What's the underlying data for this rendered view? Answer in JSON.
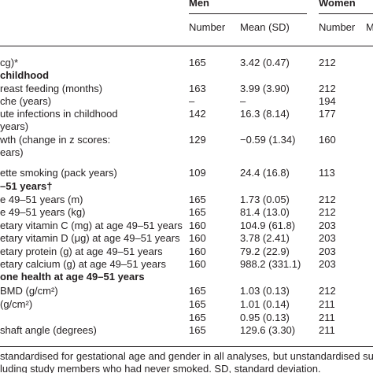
{
  "table": {
    "groups": [
      "Men",
      "Women"
    ],
    "columns": [
      "Number",
      "Mean (SD)",
      "Number",
      "M"
    ],
    "rows": [
      {
        "cells": [
          "cg)*",
          "165",
          "3.42 (0.47)",
          "212"
        ]
      },
      {
        "heading": "childhood"
      },
      {
        "cells": [
          "reast feeding (months)",
          "163",
          "3.99 (3.90)",
          "212"
        ]
      },
      {
        "cells": [
          "che (years)",
          "–",
          "–",
          "194"
        ]
      },
      {
        "cells": [
          "ute infections in childhood",
          "142",
          "16.3 (8.14)",
          "177"
        ]
      },
      {
        "text": " years)"
      },
      {
        "cells": [
          "wth (change in z scores:",
          "129",
          "−0.59 (1.34)",
          "160"
        ]
      },
      {
        "text": "ears)"
      },
      {
        "cells": [
          "ette smoking (pack years)",
          "109",
          "24.4 (16.8)",
          "113"
        ]
      },
      {
        "heading": "–51 years†"
      },
      {
        "cells": [
          "e 49–51 years (m)",
          "165",
          "1.73 (0.05)",
          "212"
        ]
      },
      {
        "cells": [
          "e 49–51 years (kg)",
          "165",
          "81.4 (13.0)",
          "212"
        ]
      },
      {
        "cells": [
          "etary vitamin C (mg) at age 49–51 years",
          "160",
          "104.9 (61.8)",
          "203"
        ]
      },
      {
        "cells": [
          "etary vitamin D (μg) at age 49–51 years",
          "160",
          "3.78 (2.41)",
          "203"
        ]
      },
      {
        "cells": [
          "etary protein (g) at age 49–51 years",
          "160",
          "79.2 (22.9)",
          "203"
        ]
      },
      {
        "cells": [
          "etary calcium (g) at age 49–51 years",
          "160",
          "988.2 (331.1)",
          "203"
        ]
      },
      {
        "heading": "one health at age 49–51 years"
      },
      {
        "cells": [
          "BMD (g/cm²)",
          "165",
          "1.03 (0.13)",
          "212"
        ]
      },
      {
        "cells": [
          "(g/cm²)",
          "165",
          "1.01 (0.14)",
          "211"
        ]
      },
      {
        "cells": [
          "",
          "165",
          "0.95 (0.13)",
          "211"
        ]
      },
      {
        "cells": [
          "shaft angle (degrees)",
          "165",
          "129.6 (3.30)",
          "211"
        ]
      }
    ],
    "footnotes": [
      "standardised for gestational age and gender in all analyses, but unstandardised sum",
      "luding study members who had never smoked. SD, standard deviation."
    ]
  }
}
